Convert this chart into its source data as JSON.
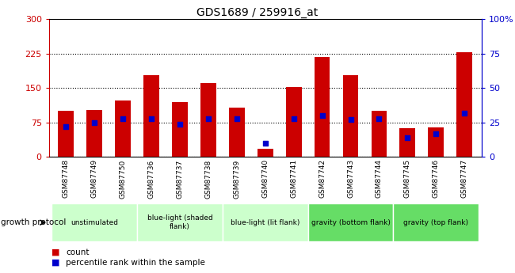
{
  "title": "GDS1689 / 259916_at",
  "samples": [
    "GSM87748",
    "GSM87749",
    "GSM87750",
    "GSM87736",
    "GSM87737",
    "GSM87738",
    "GSM87739",
    "GSM87740",
    "GSM87741",
    "GSM87742",
    "GSM87743",
    "GSM87744",
    "GSM87745",
    "GSM87746",
    "GSM87747"
  ],
  "counts": [
    100,
    103,
    123,
    178,
    120,
    160,
    108,
    18,
    152,
    218,
    178,
    100,
    63,
    65,
    228
  ],
  "percentiles": [
    22,
    25,
    28,
    28,
    24,
    28,
    28,
    10,
    28,
    30,
    27,
    28,
    14,
    17,
    32
  ],
  "group_configs": [
    {
      "label": "unstimulated",
      "start": 0,
      "end": 3,
      "color": "#ccffcc"
    },
    {
      "label": "blue-light (shaded\nflank)",
      "start": 3,
      "end": 6,
      "color": "#ccffcc"
    },
    {
      "label": "blue-light (lit flank)",
      "start": 6,
      "end": 9,
      "color": "#ccffcc"
    },
    {
      "label": "gravity (bottom flank)",
      "start": 9,
      "end": 12,
      "color": "#66dd66"
    },
    {
      "label": "gravity (top flank)",
      "start": 12,
      "end": 15,
      "color": "#66dd66"
    }
  ],
  "ylim_left": [
    0,
    300
  ],
  "ylim_right": [
    0,
    100
  ],
  "yticks_left": [
    0,
    75,
    150,
    225,
    300
  ],
  "yticks_right": [
    0,
    25,
    50,
    75,
    100
  ],
  "bar_color": "#cc0000",
  "dot_color": "#0000cc",
  "left_axis_color": "#cc0000",
  "right_axis_color": "#0000cc",
  "xtick_bg": "#c8c8c8",
  "grid_color": "#000000"
}
